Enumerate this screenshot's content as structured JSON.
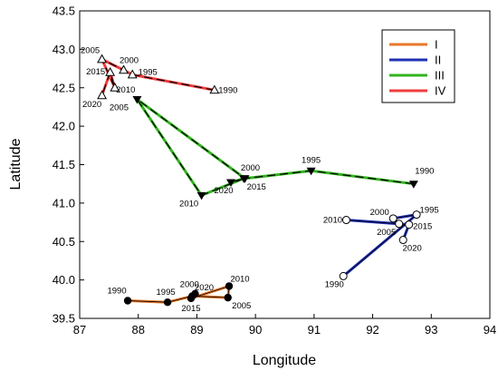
{
  "chart_data": {
    "type": "line",
    "xlabel": "Longitude",
    "ylabel": "Latitude",
    "xlim": [
      87,
      94
    ],
    "ylim": [
      39.5,
      43.5
    ],
    "xticks": [
      87,
      88,
      89,
      90,
      91,
      92,
      93,
      94
    ],
    "yticks": [
      39.5,
      40.0,
      40.5,
      41.0,
      41.5,
      42.0,
      42.5,
      43.0,
      43.5
    ],
    "grid": false,
    "legend_position": "top-right",
    "series": [
      {
        "name": "I",
        "color": "#e8782a",
        "dashed_overlay": false,
        "marker": "filled-circle",
        "points": [
          {
            "year": "1990",
            "x": 87.82,
            "y": 39.73
          },
          {
            "year": "1995",
            "x": 88.5,
            "y": 39.71
          },
          {
            "year": "2000",
            "x": 88.92,
            "y": 39.79
          },
          {
            "year": "2005",
            "x": 89.53,
            "y": 39.77
          },
          {
            "year": "2010",
            "x": 89.55,
            "y": 39.92
          },
          {
            "year": "2015",
            "x": 88.9,
            "y": 39.76
          },
          {
            "year": "2020",
            "x": 88.97,
            "y": 39.82
          }
        ]
      },
      {
        "name": "II",
        "color": "#1f2fb4",
        "dashed_overlay": false,
        "marker": "open-circle",
        "points": [
          {
            "year": "1990",
            "x": 91.5,
            "y": 40.05
          },
          {
            "year": "1995",
            "x": 92.75,
            "y": 40.85
          },
          {
            "year": "2000",
            "x": 92.35,
            "y": 40.8
          },
          {
            "year": "2005",
            "x": 92.45,
            "y": 40.73
          },
          {
            "year": "2010",
            "x": 91.55,
            "y": 40.78
          },
          {
            "year": "2015",
            "x": 92.62,
            "y": 40.72
          },
          {
            "year": "2020",
            "x": 92.52,
            "y": 40.52
          }
        ]
      },
      {
        "name": "III",
        "color": "#33b31f",
        "dashed_overlay": true,
        "marker": "filled-down-triangle",
        "points": [
          {
            "year": "1990",
            "x": 92.7,
            "y": 41.25
          },
          {
            "year": "1995",
            "x": 90.95,
            "y": 41.42
          },
          {
            "year": "2000",
            "x": 89.82,
            "y": 41.32
          },
          {
            "year": "2005",
            "x": 87.98,
            "y": 42.35
          },
          {
            "year": "2010",
            "x": 89.08,
            "y": 41.1
          },
          {
            "year": "2015",
            "x": 89.8,
            "y": 41.32
          },
          {
            "year": "2020",
            "x": 89.58,
            "y": 41.27
          }
        ]
      },
      {
        "name": "IV",
        "color": "#ef3d3d",
        "dashed_overlay": true,
        "marker": "open-up-triangle",
        "points": [
          {
            "year": "1990",
            "x": 89.3,
            "y": 42.47
          },
          {
            "year": "1995",
            "x": 87.9,
            "y": 42.67
          },
          {
            "year": "2000",
            "x": 87.75,
            "y": 42.73
          },
          {
            "year": "2005",
            "x": 87.38,
            "y": 42.87
          },
          {
            "year": "2010",
            "x": 87.6,
            "y": 42.5
          },
          {
            "year": "2015",
            "x": 87.52,
            "y": 42.7
          },
          {
            "year": "2020",
            "x": 87.38,
            "y": 42.4
          }
        ]
      }
    ]
  }
}
